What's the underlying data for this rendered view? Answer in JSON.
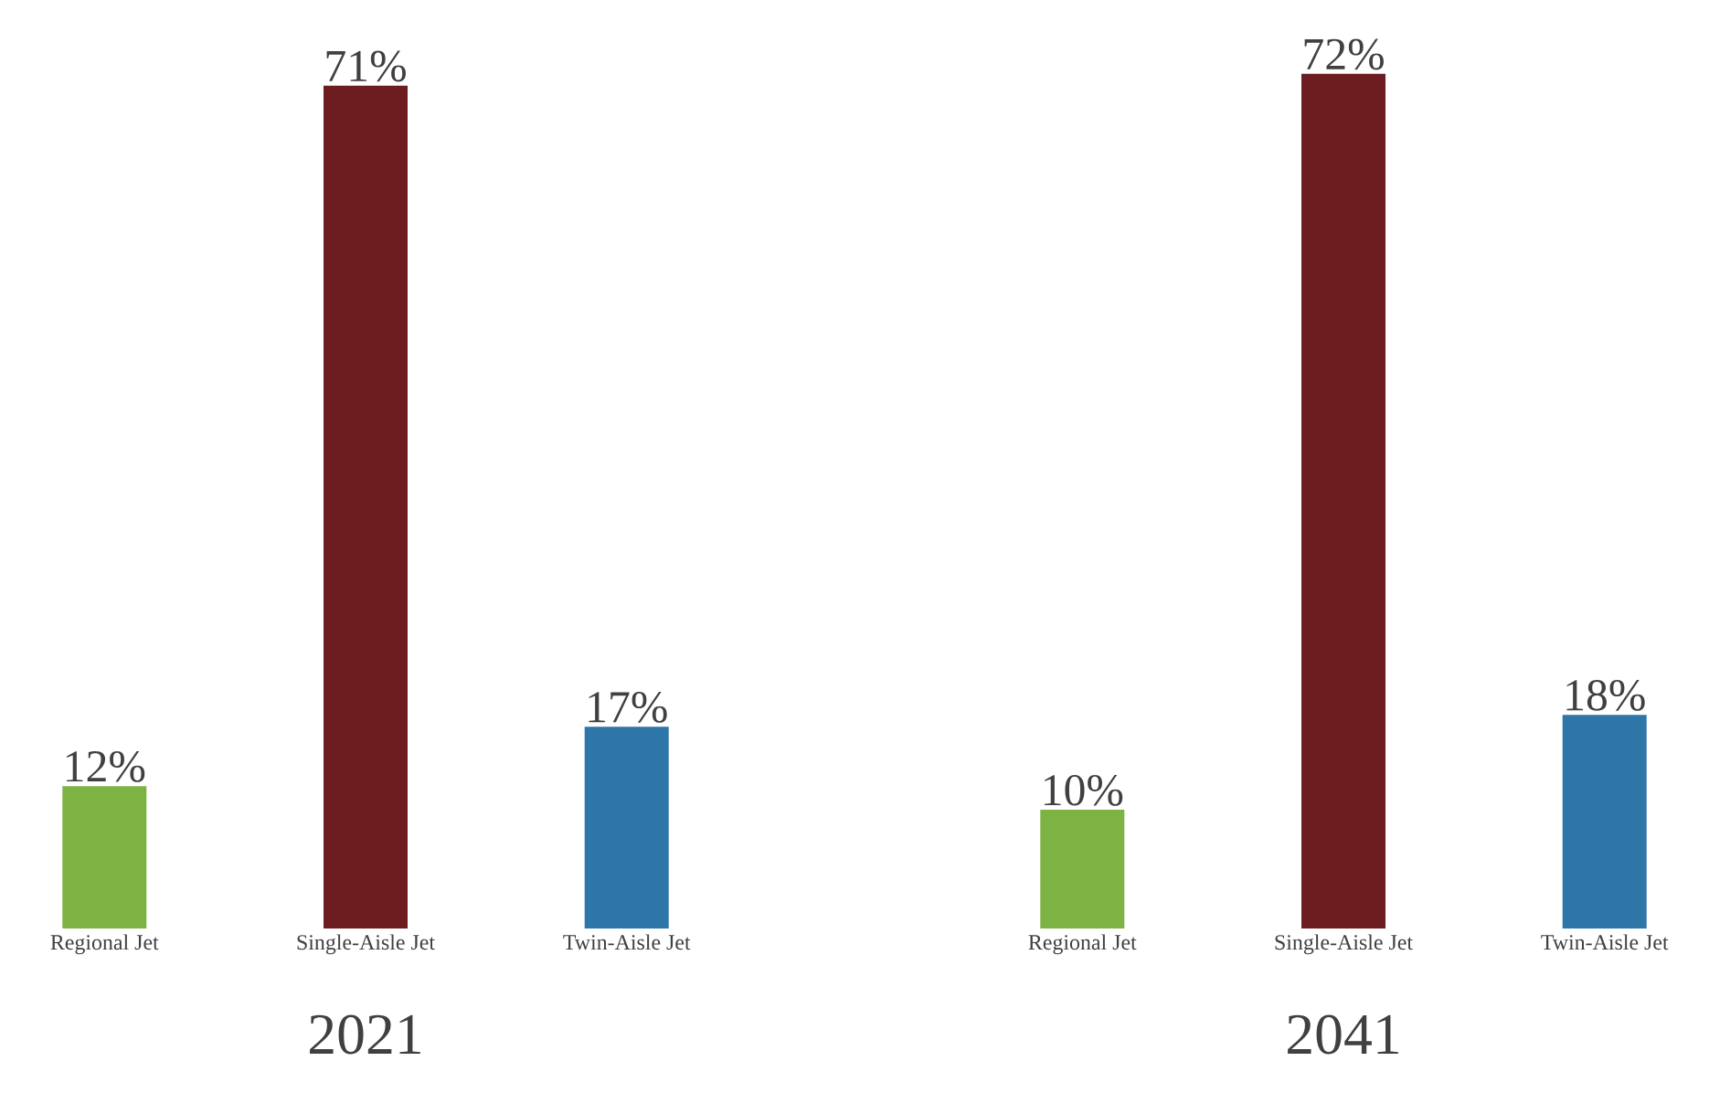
{
  "chart_data": [
    {
      "type": "bar",
      "xlabel": "2021",
      "categories": [
        "Regional Jet",
        "Single-Aisle Jet",
        "Twin-Aisle Jet"
      ],
      "values": [
        12,
        71,
        17
      ],
      "colors": [
        "#7cb342",
        "#6d1c20",
        "#2e75a8"
      ],
      "value_labels": [
        "12%",
        "71%",
        "17%"
      ]
    },
    {
      "type": "bar",
      "xlabel": "2041",
      "categories": [
        "Regional Jet",
        "Single-Aisle Jet",
        "Twin-Aisle Jet"
      ],
      "values": [
        10,
        72,
        18
      ],
      "colors": [
        "#7cb342",
        "#6d1c20",
        "#2e75a8"
      ],
      "value_labels": [
        "10%",
        "72%",
        "18%"
      ]
    }
  ]
}
